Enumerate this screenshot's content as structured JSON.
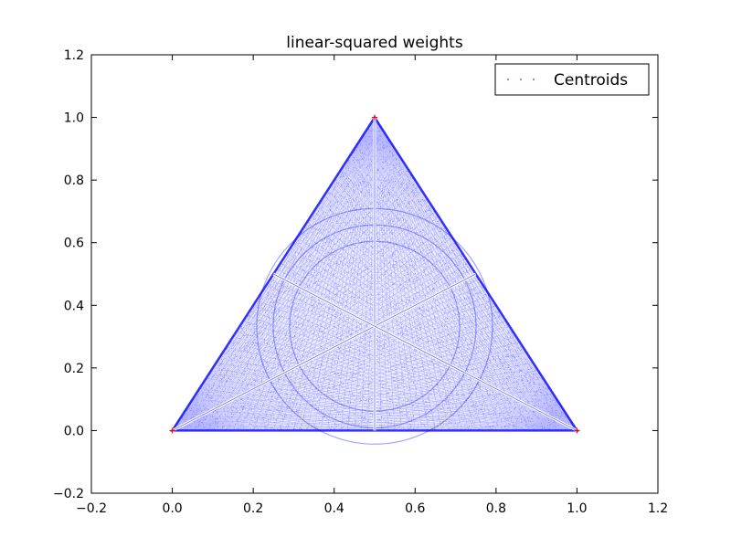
{
  "chart_data": {
    "type": "scatter",
    "title": "linear-squared weights",
    "xlabel": "",
    "ylabel": "",
    "xlim": [
      -0.2,
      1.2
    ],
    "ylim": [
      -0.2,
      1.2
    ],
    "xticks": [
      -0.2,
      0.0,
      0.2,
      0.4,
      0.6,
      0.8,
      1.0,
      1.2
    ],
    "yticks": [
      -0.2,
      0.0,
      0.2,
      0.4,
      0.6,
      0.8,
      1.0,
      1.2
    ],
    "xtick_labels": [
      "−0.2",
      "0.0",
      "0.2",
      "0.4",
      "0.6",
      "0.8",
      "1.0",
      "1.2"
    ],
    "ytick_labels": [
      "−0.2",
      "0.0",
      "0.2",
      "0.4",
      "0.6",
      "0.8",
      "1.0",
      "1.2"
    ],
    "grid": false,
    "legend": {
      "position": "top-right",
      "entries": [
        "Centroids"
      ]
    },
    "series": [
      {
        "name": "Centroids",
        "color": "#0000ff",
        "marker": "dot",
        "region": "triangle",
        "vertices": [
          [
            0.0,
            0.0
          ],
          [
            1.0,
            0.0
          ],
          [
            0.5,
            1.0
          ]
        ]
      },
      {
        "color": "#ff0000",
        "marker": "plus",
        "x": [
          0.0,
          1.0,
          0.5
        ],
        "y": [
          0.0,
          0.0,
          1.0
        ]
      }
    ]
  }
}
